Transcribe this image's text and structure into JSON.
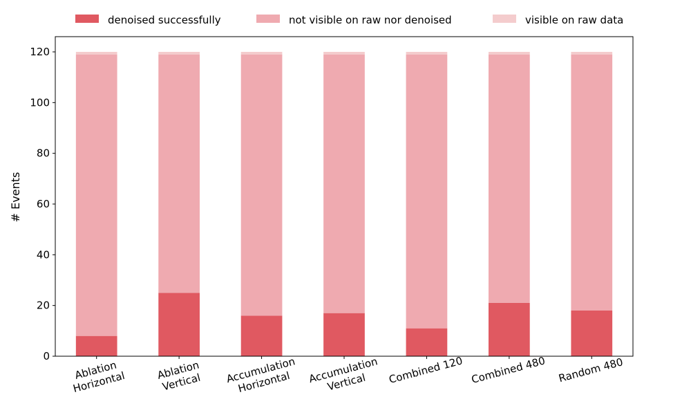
{
  "chart_data": {
    "type": "bar",
    "stacked": true,
    "title": "",
    "xlabel": "",
    "ylabel": "# Events",
    "ylim": [
      0,
      126
    ],
    "yticks": [
      0,
      20,
      40,
      60,
      80,
      100,
      120
    ],
    "grid": false,
    "legend_position": "top",
    "categories": [
      [
        "Ablation",
        "Horizontal"
      ],
      [
        "Ablation",
        "Vertical"
      ],
      [
        "Accumulation",
        "Horizontal"
      ],
      [
        "Accumulation",
        "Vertical"
      ],
      [
        "Combined 120"
      ],
      [
        "Combined 480"
      ],
      [
        "Random 480"
      ]
    ],
    "series": [
      {
        "name": "denoised successfully",
        "color": "#e05961",
        "values": [
          8,
          25,
          16,
          17,
          11,
          21,
          18
        ]
      },
      {
        "name": "not visible on raw nor denoised",
        "color": "#efaab0",
        "values": [
          111,
          94,
          103,
          102,
          108,
          98,
          101
        ]
      },
      {
        "name": "visible on raw data",
        "color": "#f4cccd",
        "values": [
          1,
          1,
          1,
          1,
          1,
          1,
          1
        ]
      }
    ]
  }
}
